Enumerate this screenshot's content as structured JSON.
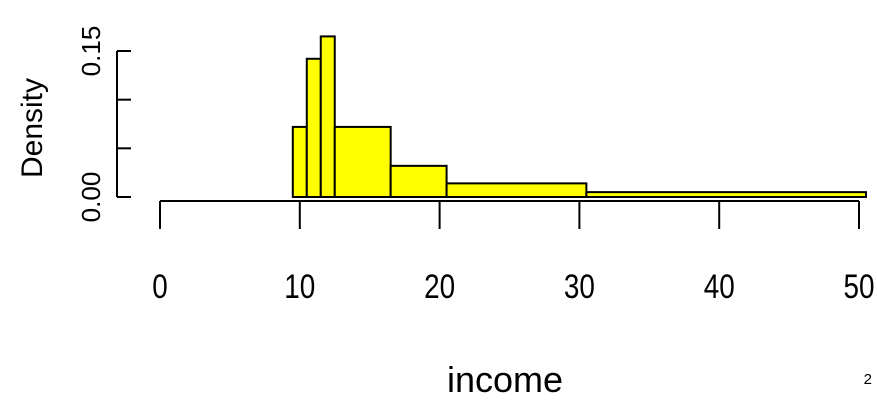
{
  "chart_data": {
    "type": "bar",
    "xlabel": "income",
    "ylabel": "Density",
    "xlim": [
      0,
      50
    ],
    "ylim": [
      0,
      0.15
    ],
    "x_ticks": [
      "0",
      "10",
      "20",
      "30",
      "40",
      "50"
    ],
    "y_ticks": [
      "0.00",
      "0.15"
    ],
    "y_tick_positions": [
      0,
      0.05,
      0.1,
      0.15
    ],
    "bins": [
      {
        "start": 9.5,
        "end": 10.5,
        "density": 0.072
      },
      {
        "start": 10.5,
        "end": 11.5,
        "density": 0.142
      },
      {
        "start": 11.5,
        "end": 12.5,
        "density": 0.165
      },
      {
        "start": 12.5,
        "end": 16.5,
        "density": 0.072
      },
      {
        "start": 16.5,
        "end": 20.5,
        "density": 0.032
      },
      {
        "start": 20.5,
        "end": 30.5,
        "density": 0.014
      },
      {
        "start": 30.5,
        "end": 50.5,
        "density": 0.005
      }
    ],
    "bar_color": "#ffff00",
    "grid": false,
    "legend": "none"
  },
  "page_number": "2"
}
